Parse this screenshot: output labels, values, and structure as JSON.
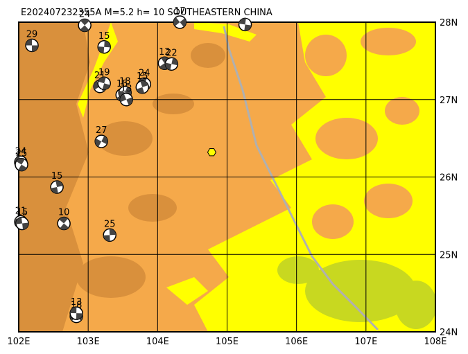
{
  "title": "E202407232355A M=5.2 h= 10 SOUTHEASTERN CHINA",
  "map": {
    "lonlim": [
      102,
      108
    ],
    "latlim": [
      24,
      28
    ],
    "lon_ticks": [
      {
        "value": 102,
        "label": "102E"
      },
      {
        "value": 103,
        "label": "103E"
      },
      {
        "value": 104,
        "label": "104E"
      },
      {
        "value": 105,
        "label": "105E"
      },
      {
        "value": 106,
        "label": "106E"
      },
      {
        "value": 107,
        "label": "107E"
      },
      {
        "value": 108,
        "label": "108E"
      }
    ],
    "lat_ticks": [
      {
        "value": 28,
        "label": "28N"
      },
      {
        "value": 27,
        "label": "27N"
      },
      {
        "value": 26,
        "label": "26N"
      },
      {
        "value": 25,
        "label": "25N"
      },
      {
        "value": 24,
        "label": "24N"
      }
    ]
  },
  "epicenter": {
    "lon": 104.78,
    "lat": 26.32
  },
  "events": [
    {
      "label": "29",
      "lon": 102.19,
      "lat": 27.7
    },
    {
      "label": "24",
      "lon": 102.95,
      "lat": 27.96
    },
    {
      "label": "15",
      "lon": 103.23,
      "lat": 27.68
    },
    {
      "label": "17",
      "lon": 104.32,
      "lat": 28.0
    },
    {
      "label": null,
      "lon": 105.26,
      "lat": 27.97
    },
    {
      "label": "12",
      "lon": 104.1,
      "lat": 27.47
    },
    {
      "label": "22",
      "lon": 104.2,
      "lat": 27.46
    },
    {
      "label": "21",
      "lon": 103.17,
      "lat": 27.17
    },
    {
      "label": "19",
      "lon": 103.23,
      "lat": 27.21
    },
    {
      "label": "15",
      "lon": 103.49,
      "lat": 27.06
    },
    {
      "label": "18",
      "lon": 103.53,
      "lat": 27.09
    },
    {
      "label": "13",
      "lon": 103.55,
      "lat": 27.0
    },
    {
      "label": "24",
      "lon": 103.81,
      "lat": 27.2
    },
    {
      "label": "15",
      "lon": 103.78,
      "lat": 27.16
    },
    {
      "label": "27",
      "lon": 103.19,
      "lat": 26.46
    },
    {
      "label": "24",
      "lon": 102.03,
      "lat": 26.19
    },
    {
      "label": "25",
      "lon": 102.04,
      "lat": 26.16
    },
    {
      "label": "15",
      "lon": 102.55,
      "lat": 25.87
    },
    {
      "label": "21",
      "lon": 102.03,
      "lat": 25.42
    },
    {
      "label": "15",
      "lon": 102.05,
      "lat": 25.4
    },
    {
      "label": "10",
      "lon": 102.65,
      "lat": 25.4
    },
    {
      "label": "25",
      "lon": 103.31,
      "lat": 25.25
    },
    {
      "label": "18",
      "lon": 102.83,
      "lat": 24.2
    },
    {
      "label": "13",
      "lon": 102.83,
      "lat": 24.24
    }
  ]
}
